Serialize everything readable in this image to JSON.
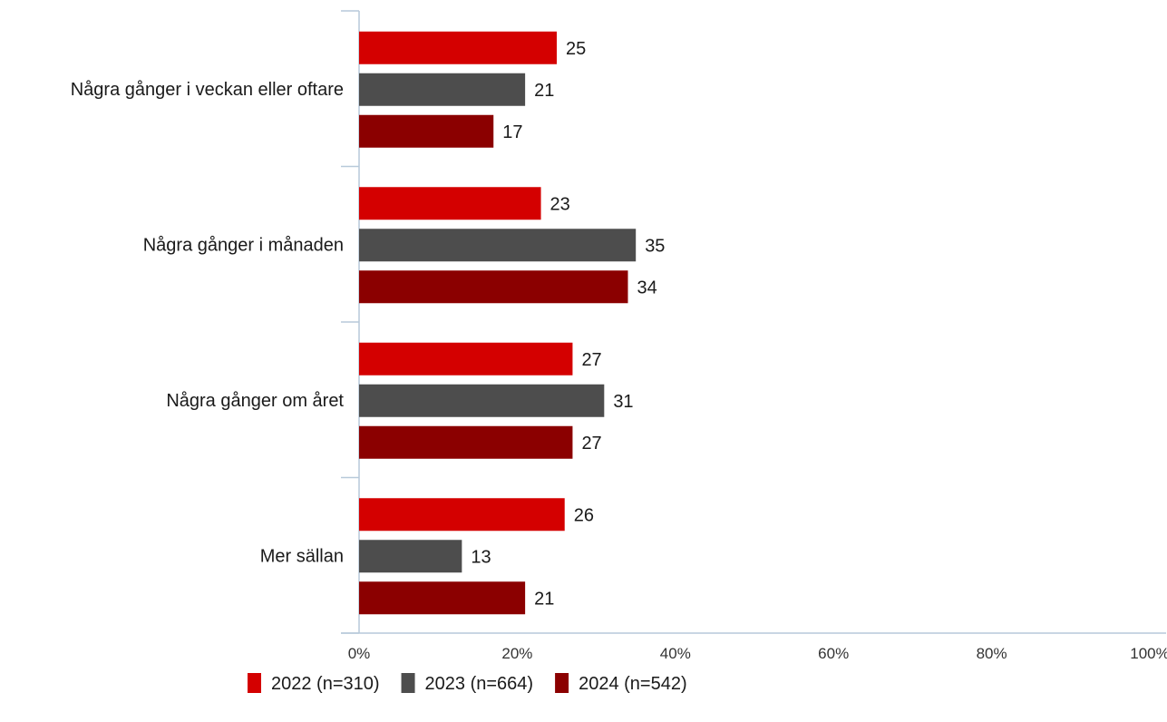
{
  "chart_data": {
    "type": "bar",
    "orientation": "horizontal",
    "categories": [
      "Några gånger i veckan eller oftare",
      "Några gånger i månaden",
      "Några gånger om året",
      "Mer sällan"
    ],
    "series": [
      {
        "name": "2022 (n=310)",
        "color": "#d40000",
        "values": [
          25,
          23,
          27,
          26
        ]
      },
      {
        "name": "2023 (n=664)",
        "color": "#4d4d4d",
        "values": [
          21,
          35,
          31,
          13
        ]
      },
      {
        "name": "2024 (n=542)",
        "color": "#8b0000",
        "values": [
          17,
          34,
          27,
          21
        ]
      }
    ],
    "xlim": [
      0,
      100
    ],
    "xticks": [
      "0%",
      "20%",
      "40%",
      "60%",
      "80%",
      "100%"
    ],
    "title": "",
    "xlabel": "",
    "ylabel": "",
    "grid": false,
    "legend_position": "bottom"
  }
}
